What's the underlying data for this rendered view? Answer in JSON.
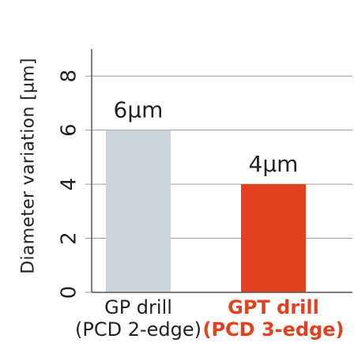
{
  "chart_data": {
    "type": "bar",
    "title": "",
    "ylabel": "Diameter variation [µm]",
    "xlabel": "",
    "ylim": [
      0,
      9
    ],
    "yticks": [
      0,
      2,
      4,
      6,
      8
    ],
    "grid": true,
    "categories": [
      {
        "line1": "GP drill",
        "line2": "(PCD 2-edge)"
      },
      {
        "line1": "GPT drill",
        "line2": "(PCD 3-edge)"
      }
    ],
    "values": [
      6,
      4
    ],
    "data_labels": [
      "6µm",
      "4µm"
    ],
    "colors": [
      "#cbd3db",
      "#e2401f"
    ],
    "label_colors": [
      "#222222",
      "#e2401f"
    ]
  }
}
